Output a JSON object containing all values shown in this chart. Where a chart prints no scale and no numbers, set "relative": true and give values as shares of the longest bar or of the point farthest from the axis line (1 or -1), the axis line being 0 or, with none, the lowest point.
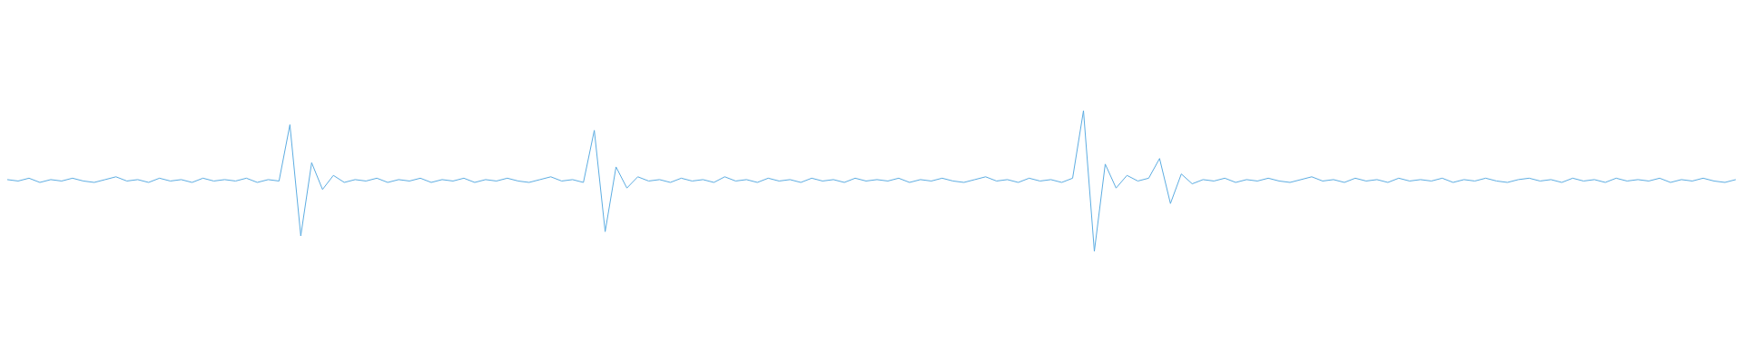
{
  "chart_data": {
    "type": "line",
    "relative": true,
    "marker": "none",
    "line_style": "solid",
    "categories": [
      null,
      null,
      null,
      null,
      null,
      null,
      null,
      null,
      null,
      null,
      null,
      null,
      null,
      null,
      null,
      null,
      null,
      null,
      null,
      null,
      null,
      null,
      null,
      null,
      null,
      null,
      null,
      null,
      null,
      null,
      null,
      null,
      null,
      null,
      null,
      null,
      null,
      null,
      null,
      null,
      null,
      null,
      null,
      null,
      null,
      null,
      null,
      null,
      null,
      null,
      null,
      null,
      null,
      null,
      null,
      null,
      null,
      null,
      null,
      null,
      null,
      null,
      null,
      null,
      null,
      null,
      null,
      null,
      null,
      null,
      null,
      null,
      null,
      null,
      null,
      null,
      null,
      null,
      null,
      null,
      null,
      null,
      null,
      null,
      null,
      null,
      null,
      null,
      null,
      null,
      null,
      null,
      null,
      null,
      null,
      null,
      null,
      null,
      null,
      null,
      null,
      null,
      null,
      null,
      null,
      null,
      null,
      null,
      null,
      null,
      null,
      null,
      null,
      null,
      null,
      null,
      null,
      null,
      null,
      null,
      null,
      null,
      null,
      null,
      null,
      null,
      null,
      null,
      null,
      null,
      null,
      null,
      null,
      null,
      null,
      null,
      null,
      null,
      null,
      null,
      null,
      null,
      null,
      null,
      null,
      null,
      null,
      null,
      null,
      null,
      null,
      null,
      null,
      null,
      null,
      null,
      null,
      null,
      null,
      null
    ],
    "series": [
      {
        "color": "#5dade2",
        "values": [
          0.51,
          0.5,
          0.52,
          0.49,
          0.51,
          0.5,
          0.52,
          0.5,
          0.49,
          0.51,
          0.53,
          0.5,
          0.51,
          0.49,
          0.52,
          0.5,
          0.51,
          0.49,
          0.52,
          0.5,
          0.51,
          0.5,
          0.52,
          0.49,
          0.51,
          0.5,
          0.9,
          0.11,
          0.63,
          0.44,
          0.54,
          0.49,
          0.51,
          0.5,
          0.52,
          0.49,
          0.51,
          0.5,
          0.52,
          0.49,
          0.51,
          0.5,
          0.52,
          0.49,
          0.51,
          0.5,
          0.52,
          0.5,
          0.49,
          0.51,
          0.53,
          0.5,
          0.51,
          0.49,
          0.86,
          0.14,
          0.6,
          0.45,
          0.53,
          0.5,
          0.51,
          0.49,
          0.52,
          0.5,
          0.51,
          0.49,
          0.53,
          0.5,
          0.51,
          0.49,
          0.52,
          0.5,
          0.51,
          0.49,
          0.52,
          0.5,
          0.51,
          0.49,
          0.52,
          0.5,
          0.51,
          0.5,
          0.52,
          0.49,
          0.51,
          0.5,
          0.52,
          0.5,
          0.49,
          0.51,
          0.53,
          0.5,
          0.51,
          0.49,
          0.52,
          0.5,
          0.51,
          0.49,
          0.52,
          1,
          0,
          0.62,
          0.45,
          0.54,
          0.5,
          0.52,
          0.66,
          0.34,
          0.55,
          0.48,
          0.51,
          0.5,
          0.52,
          0.49,
          0.51,
          0.5,
          0.52,
          0.5,
          0.49,
          0.51,
          0.53,
          0.5,
          0.51,
          0.49,
          0.52,
          0.5,
          0.51,
          0.49,
          0.52,
          0.5,
          0.51,
          0.5,
          0.52,
          0.49,
          0.51,
          0.5,
          0.52,
          0.5,
          0.49,
          0.51,
          0.52,
          0.5,
          0.51,
          0.49,
          0.52,
          0.5,
          0.51,
          0.49,
          0.52,
          0.5,
          0.51,
          0.5,
          0.52,
          0.49,
          0.51,
          0.5,
          0.52,
          0.5,
          0.49,
          0.51
        ]
      }
    ]
  }
}
